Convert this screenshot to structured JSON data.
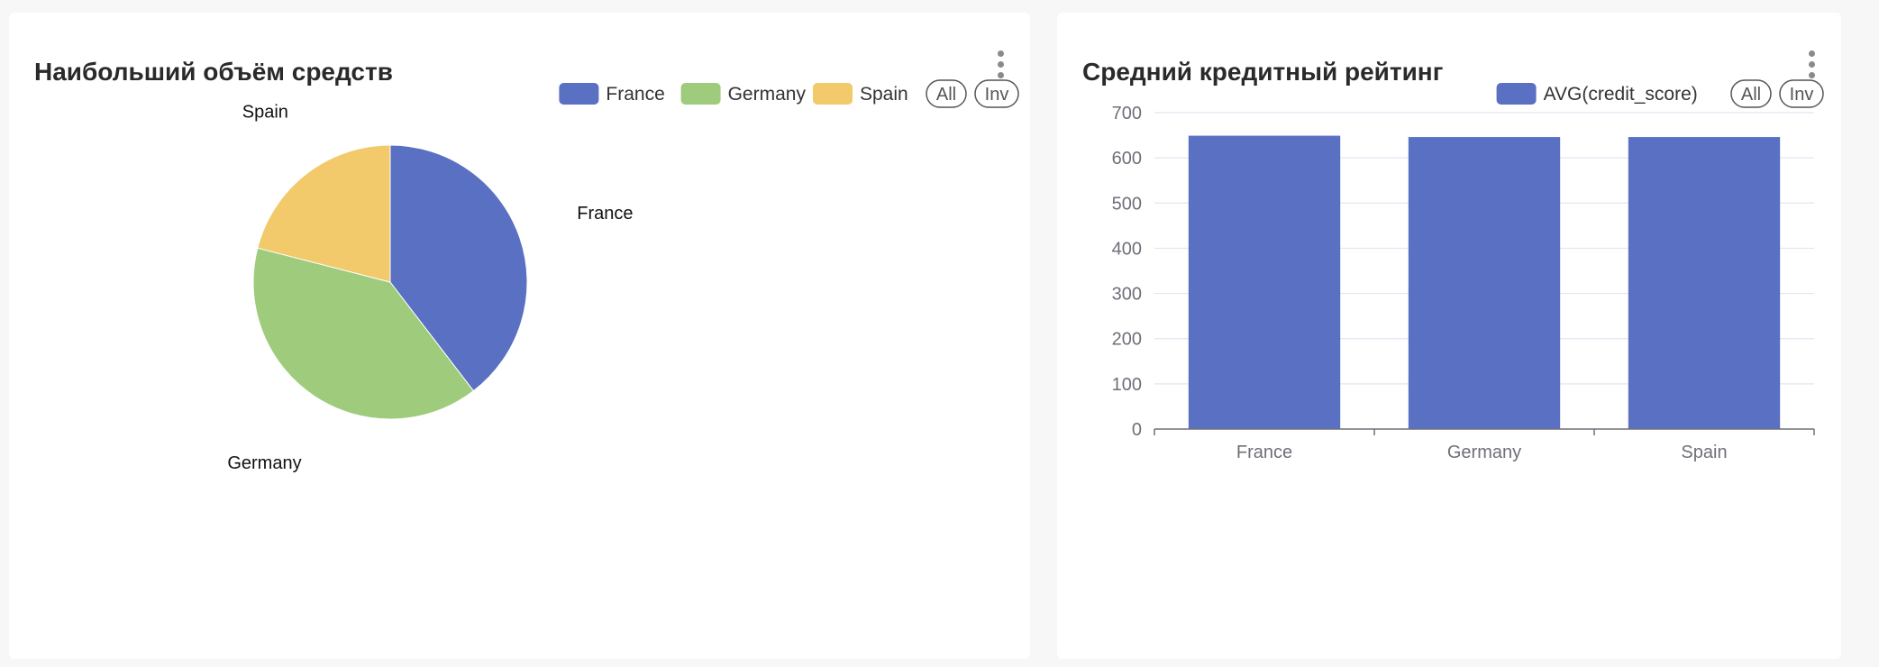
{
  "left_panel": {
    "title": "Наибольший объём средств",
    "legend_all": "All",
    "legend_inv": "Inv"
  },
  "right_panel": {
    "title": "Средний кредитный рейтинг",
    "legend_all": "All",
    "legend_inv": "Inv"
  },
  "colors": {
    "blue": "#5a70c2",
    "green": "#9fcb7c",
    "yellow": "#f2ca6b",
    "axis": "#6e7079",
    "grid": "#e0e6f1"
  },
  "chart_data": [
    {
      "type": "pie",
      "title": "Наибольший объём средств",
      "labels": [
        "France",
        "Germany",
        "Spain"
      ],
      "values": [
        39.6,
        39.4,
        21.0
      ],
      "legend": [
        "France",
        "Germany",
        "Spain"
      ],
      "legend_placement": "top-right"
    },
    {
      "type": "bar",
      "title": "Средний кредитный рейтинг",
      "categories": [
        "France",
        "Germany",
        "Spain"
      ],
      "series": [
        {
          "name": "AVG(credit_score)",
          "values": [
            649,
            646,
            646
          ]
        }
      ],
      "ylim": [
        0,
        700
      ],
      "yticks": [
        0,
        100,
        200,
        300,
        400,
        500,
        600,
        700
      ],
      "grid": true,
      "legend_placement": "top-right"
    }
  ]
}
